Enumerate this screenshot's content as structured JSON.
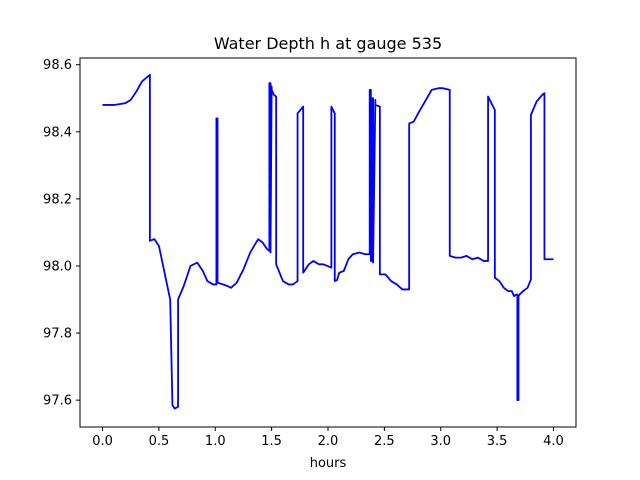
{
  "chart_data": {
    "type": "line",
    "title": "Water Depth h at gauge 535",
    "xlabel": "hours",
    "ylabel": "",
    "xlim": [
      -0.2,
      4.2
    ],
    "ylim": [
      97.52,
      98.62
    ],
    "xticks": [
      0.0,
      0.5,
      1.0,
      1.5,
      2.0,
      2.5,
      3.0,
      3.5,
      4.0
    ],
    "xtick_labels": [
      "0.0",
      "0.5",
      "1.0",
      "1.5",
      "2.0",
      "2.5",
      "3.0",
      "3.5",
      "4.0"
    ],
    "yticks": [
      97.6,
      97.8,
      98.0,
      98.2,
      98.4,
      98.6
    ],
    "ytick_labels": [
      "97.6",
      "97.8",
      "98.0",
      "98.2",
      "98.4",
      "98.6"
    ],
    "grid": false,
    "color": "#0000ff",
    "series": [
      {
        "x": [
          0.0,
          0.1,
          0.2,
          0.25,
          0.3,
          0.35,
          0.42,
          0.42,
          0.46,
          0.5,
          0.55,
          0.6,
          0.62,
          0.62,
          0.64,
          0.67,
          0.67,
          0.72,
          0.78,
          0.84,
          0.89,
          0.93,
          0.98,
          1.01,
          1.01,
          1.02,
          1.02,
          1.07,
          1.11,
          1.14,
          1.19,
          1.25,
          1.31,
          1.38,
          1.42,
          1.46,
          1.48,
          1.48,
          1.49,
          1.49,
          1.5,
          1.5,
          1.52,
          1.54,
          1.54,
          1.6,
          1.65,
          1.69,
          1.73,
          1.73,
          1.78,
          1.78,
          1.83,
          1.87,
          1.92,
          1.96,
          2.03,
          2.03,
          2.06,
          2.06,
          2.08,
          2.1,
          2.14,
          2.18,
          2.22,
          2.28,
          2.33,
          2.37,
          2.37,
          2.38,
          2.38,
          2.39,
          2.39,
          2.4,
          2.4,
          2.42,
          2.42,
          2.46,
          2.46,
          2.51,
          2.56,
          2.61,
          2.66,
          2.69,
          2.72,
          2.72,
          2.76,
          2.8,
          2.86,
          2.92,
          2.98,
          3.02,
          3.08,
          3.08,
          3.13,
          3.18,
          3.23,
          3.28,
          3.33,
          3.38,
          3.42,
          3.42,
          3.45,
          3.48,
          3.48,
          3.52,
          3.56,
          3.6,
          3.63,
          3.65,
          3.67,
          3.68,
          3.68,
          3.69,
          3.69,
          3.7,
          3.73,
          3.77,
          3.8,
          3.8,
          3.85,
          3.9,
          3.92,
          3.92,
          3.96,
          4.0
        ],
        "y": [
          98.48,
          98.48,
          98.485,
          98.495,
          98.52,
          98.55,
          98.57,
          98.075,
          98.08,
          98.06,
          97.98,
          97.9,
          97.585,
          97.585,
          97.575,
          97.58,
          97.9,
          97.94,
          98.0,
          98.01,
          97.985,
          97.955,
          97.945,
          97.945,
          98.44,
          98.44,
          97.95,
          97.945,
          97.94,
          97.935,
          97.95,
          97.99,
          98.04,
          98.08,
          98.07,
          98.05,
          98.045,
          98.545,
          98.545,
          98.04,
          98.535,
          98.525,
          98.51,
          98.505,
          98.005,
          97.955,
          97.945,
          97.945,
          97.955,
          98.455,
          98.475,
          97.98,
          98.005,
          98.015,
          98.005,
          98.005,
          97.995,
          98.475,
          98.455,
          97.955,
          97.958,
          97.98,
          97.985,
          98.02,
          98.035,
          98.04,
          98.035,
          98.035,
          98.525,
          98.525,
          98.015,
          98.015,
          98.5,
          98.5,
          98.01,
          98.495,
          98.48,
          98.475,
          97.975,
          97.975,
          97.955,
          97.945,
          97.93,
          97.93,
          97.93,
          98.425,
          98.43,
          98.455,
          98.49,
          98.525,
          98.53,
          98.53,
          98.525,
          98.03,
          98.025,
          98.025,
          98.03,
          98.02,
          98.025,
          98.015,
          98.015,
          98.505,
          98.485,
          98.465,
          97.965,
          97.955,
          97.935,
          97.925,
          97.925,
          97.91,
          97.915,
          97.915,
          97.6,
          97.6,
          97.91,
          97.915,
          97.925,
          97.935,
          97.96,
          98.45,
          98.49,
          98.51,
          98.515,
          98.02,
          98.02,
          98.02
        ]
      }
    ]
  }
}
